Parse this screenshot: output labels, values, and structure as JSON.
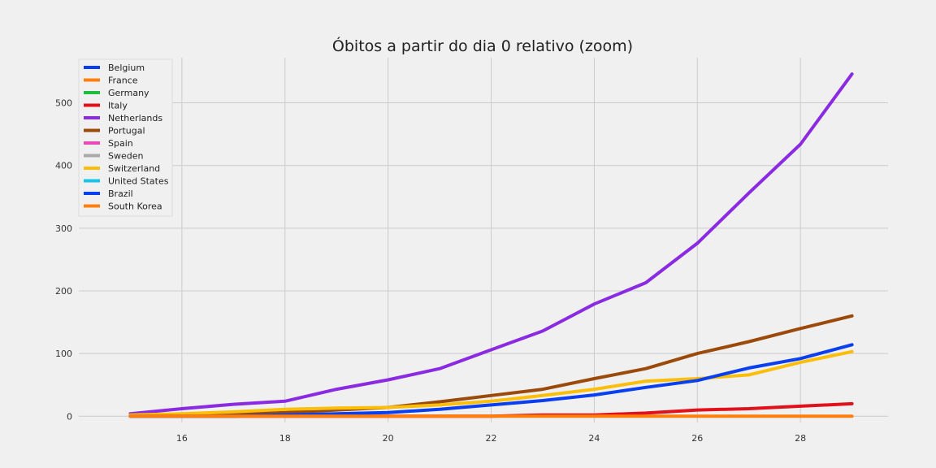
{
  "chart_data": {
    "type": "line",
    "title": "Óbitos a partir do dia 0 relativo (zoom)",
    "xlabel": "",
    "ylabel": "",
    "xlim": [
      14.0,
      29.7
    ],
    "ylim": [
      -10,
      572
    ],
    "xticks": [
      16,
      18,
      20,
      22,
      24,
      26,
      28
    ],
    "yticks": [
      0,
      100,
      200,
      300,
      400,
      500
    ],
    "grid": true,
    "legend_position": "top-left",
    "x": [
      15,
      16,
      17,
      18,
      19,
      20,
      21,
      22,
      23,
      24,
      25,
      26,
      27,
      28,
      29
    ],
    "series": [
      {
        "name": "Belgium",
        "color": "#0a3ff0",
        "values": [
          null,
          null,
          null,
          null,
          null,
          null,
          null,
          null,
          null,
          null,
          null,
          null,
          null,
          null,
          null
        ]
      },
      {
        "name": "France",
        "color": "#ff7f0e",
        "values": [
          null,
          null,
          null,
          null,
          null,
          null,
          null,
          null,
          null,
          null,
          null,
          null,
          null,
          null,
          null
        ]
      },
      {
        "name": "Germany",
        "color": "#1fbd3c",
        "values": [
          null,
          null,
          null,
          null,
          null,
          null,
          null,
          null,
          null,
          null,
          null,
          null,
          null,
          null,
          null
        ]
      },
      {
        "name": "Italy",
        "color": "#e0111a",
        "values": [
          0,
          0,
          0,
          0,
          0,
          0,
          0,
          0,
          2,
          2,
          5,
          10,
          12,
          16,
          20
        ]
      },
      {
        "name": "Netherlands",
        "color": "#8a2be2",
        "values": [
          4,
          12,
          19,
          24,
          43,
          58,
          76,
          106,
          136,
          179,
          213,
          276,
          356,
          434,
          546
        ]
      },
      {
        "name": "Portugal",
        "color": "#9c4a0b",
        "values": [
          1,
          2,
          3,
          6,
          10,
          14,
          23,
          33,
          43,
          60,
          76,
          100,
          119,
          140,
          160
        ]
      },
      {
        "name": "Spain",
        "color": "#e84bb5",
        "values": [
          null,
          null,
          null,
          null,
          null,
          null,
          null,
          null,
          null,
          null,
          null,
          null,
          null,
          null,
          null
        ]
      },
      {
        "name": "Sweden",
        "color": "#a9a9a9",
        "values": [
          null,
          null,
          null,
          null,
          null,
          null,
          null,
          null,
          null,
          null,
          null,
          null,
          null,
          null,
          null
        ]
      },
      {
        "name": "Switzerland",
        "color": "#fbbf0b",
        "values": [
          2,
          4,
          7,
          11,
          13,
          14,
          18,
          24,
          33,
          43,
          56,
          60,
          66,
          86,
          103
        ]
      },
      {
        "name": "United States",
        "color": "#17c3e6",
        "values": [
          null,
          null,
          null,
          null,
          null,
          null,
          null,
          null,
          null,
          null,
          null,
          null,
          null,
          null,
          null
        ]
      },
      {
        "name": "Brazil",
        "color": "#0a3ff0",
        "values": [
          0,
          0,
          0,
          2,
          4,
          6,
          11,
          18,
          25,
          34,
          46,
          57,
          77,
          92,
          114
        ]
      },
      {
        "name": "South Korea",
        "color": "#ff7f0e",
        "values": [
          0,
          0,
          0,
          0,
          0,
          0,
          0,
          0,
          0,
          0,
          0,
          0,
          0,
          0,
          0
        ]
      }
    ]
  }
}
